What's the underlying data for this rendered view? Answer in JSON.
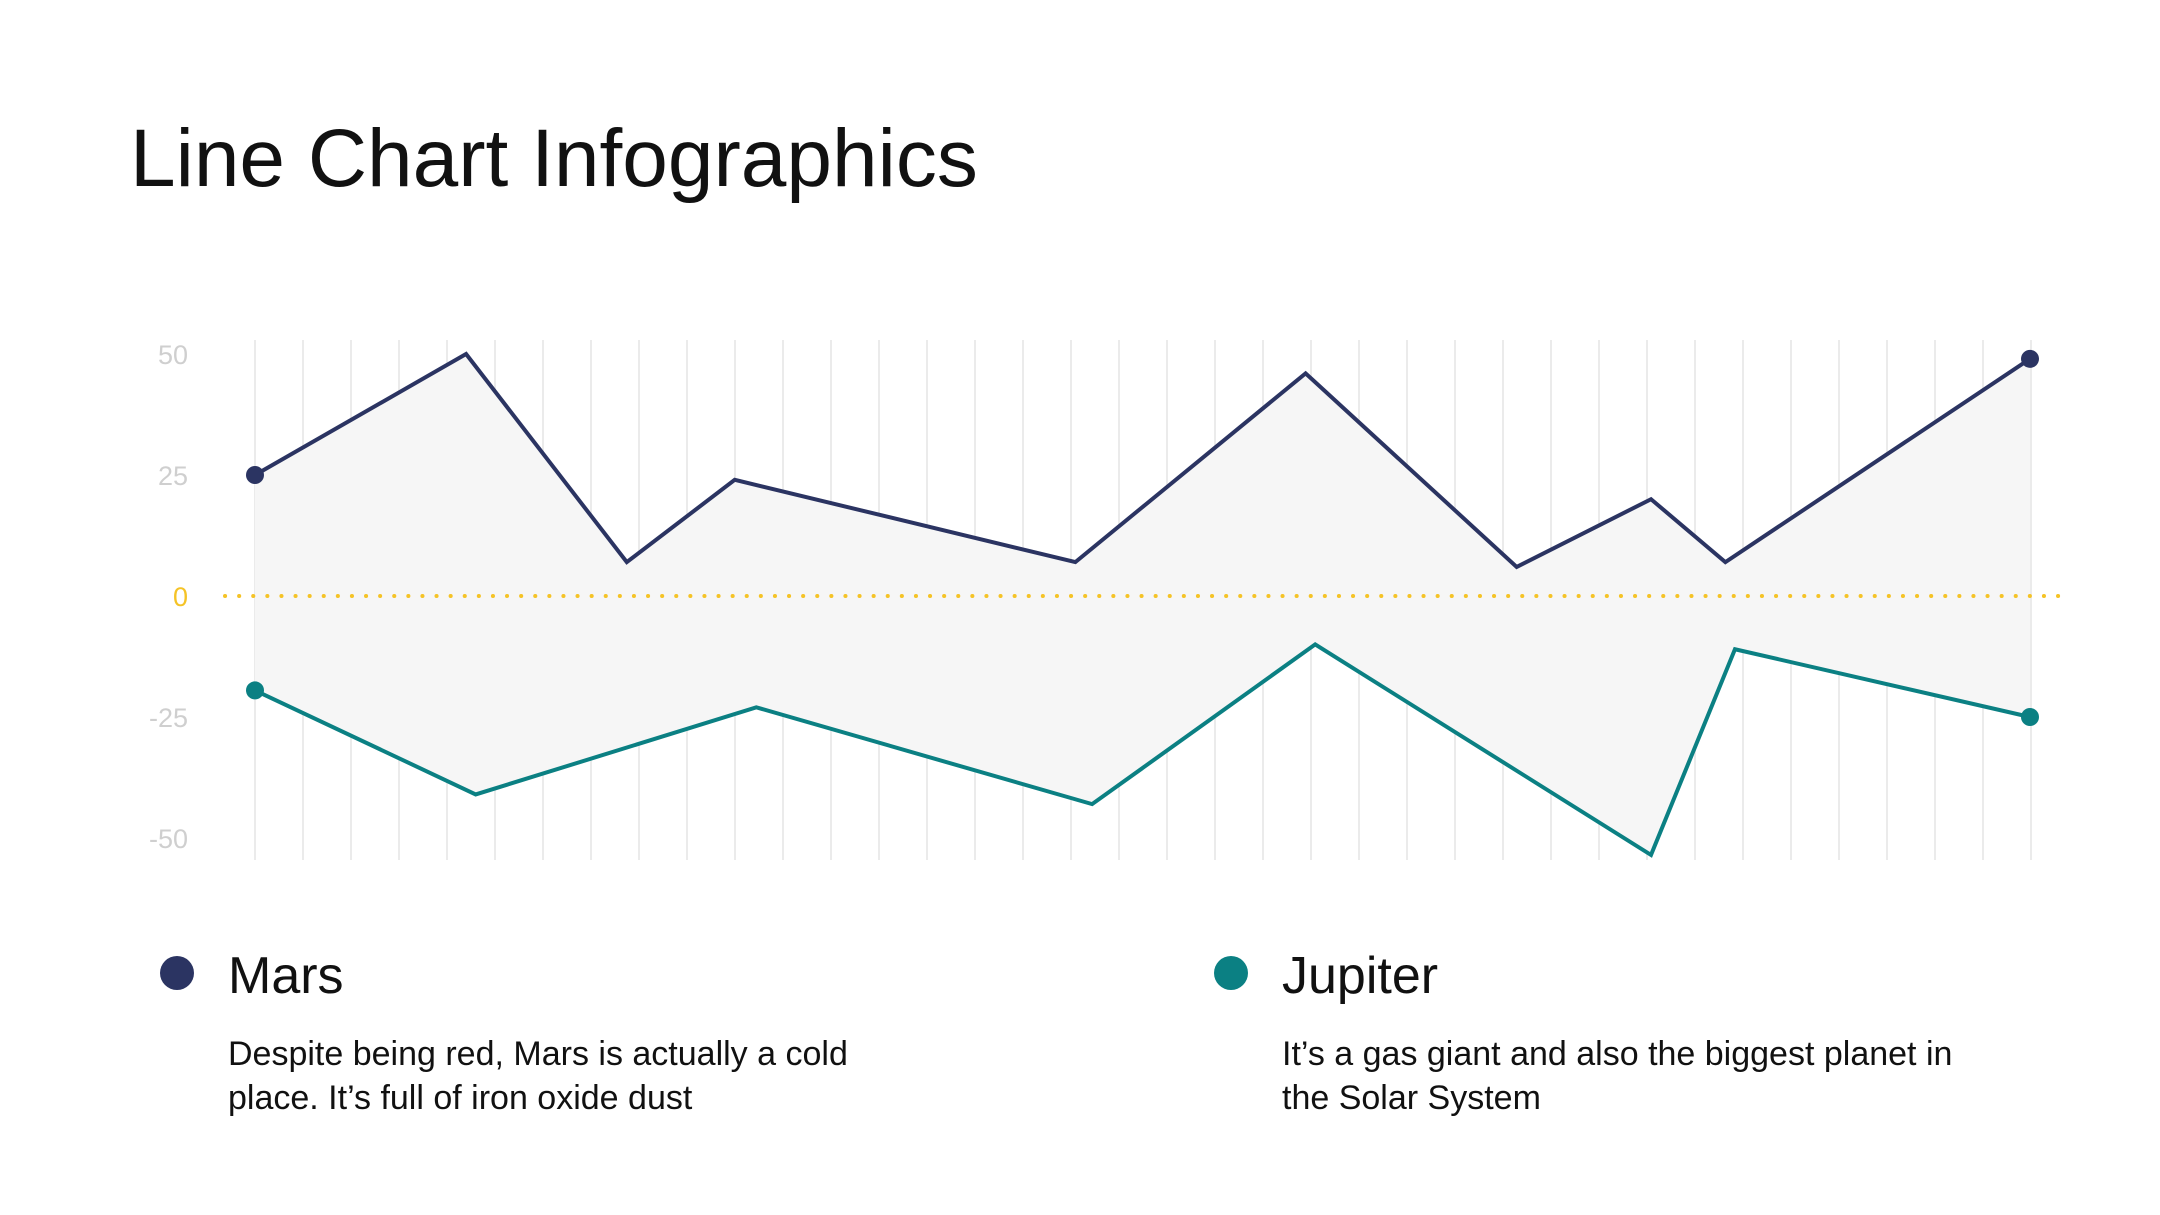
{
  "title": "Line Chart Infographics",
  "colors": {
    "mars": "#2b3462",
    "jupiter": "#0b8083",
    "zero_line": "#f5c326",
    "fill": "#f6f6f6",
    "grid": "#ebebeb",
    "tick": "#cfcfcf"
  },
  "chart_data": {
    "type": "line",
    "title": "",
    "xlabel": "",
    "ylabel": "",
    "ylim": [
      -50,
      50
    ],
    "yticks": [
      50,
      25,
      0,
      -25,
      -50
    ],
    "zero_tick": 0,
    "grid": true,
    "series": [
      {
        "name": "Mars",
        "x": [
          0,
          4.4,
          7.75,
          10,
          17.1,
          21.9,
          26.3,
          29.1,
          30.65,
          37
        ],
        "values": [
          25,
          50,
          7,
          24,
          7,
          46,
          6,
          20,
          7,
          49
        ]
      },
      {
        "name": "Jupiter",
        "x": [
          0,
          4.6,
          10.45,
          17.45,
          22.1,
          29.1,
          30.85,
          37
        ],
        "values": [
          -19.5,
          -41,
          -23,
          -43,
          -10,
          -53.5,
          -11,
          -25
        ]
      }
    ]
  },
  "legend": [
    {
      "name": "Mars",
      "description": "Despite being red, Mars is actually a cold place. It’s full of iron oxide dust"
    },
    {
      "name": "Jupiter",
      "description": "It’s a gas giant and also the biggest planet in the Solar System"
    }
  ]
}
